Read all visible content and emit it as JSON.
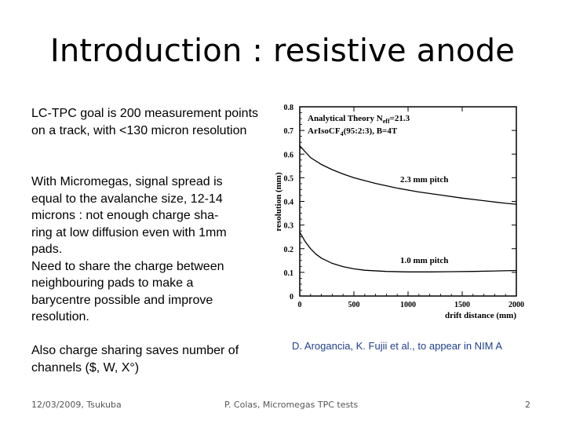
{
  "slide": {
    "title": "Introduction : resistive anode",
    "paragraph1": "LC-TPC goal is 200 measurement points on a track, with <130 micron resolution",
    "paragraph2_lines": [
      "With Micromegas, signal spread is",
      "equal to the avalanche size, 12-14",
      "microns : not enough charge sha-",
      "ring at low diffusion even with 1mm",
      "pads.",
      "Need to share the charge between",
      "neighbouring pads to make a",
      "barycentre possible and improve",
      "resolution."
    ],
    "paragraph3": "Also charge sharing saves number of channels ($, W, X°)",
    "caption": "D. Arogancia, K. Fujii et al., to appear in NIM A"
  },
  "footer": {
    "date": "12/03/2009, Tsukuba",
    "center": "P. Colas, Micromegas TPC tests",
    "page": "2"
  },
  "chart_data": {
    "type": "line",
    "xlabel": "drift distance (mm)",
    "ylabel": "resolution (mm)",
    "xlim": [
      0,
      2000
    ],
    "ylim": [
      0,
      0.8
    ],
    "x_ticks": [
      "0",
      "500",
      "1000",
      "1500",
      "2000"
    ],
    "y_ticks": [
      "0",
      "0.1",
      "0.2",
      "0.3",
      "0.4",
      "0.5",
      "0.6",
      "0.7",
      "0.8"
    ],
    "legend_line1": "Analytical Theory N",
    "legend_sub": "eff",
    "legend_value": "=21.3",
    "legend_line2": "ArIsoCF",
    "legend_sub2": "4",
    "legend_line2_rest": "(95:2:3), B=4T",
    "series": [
      {
        "name": "2.3 mm pitch",
        "x": [
          0,
          100,
          200,
          300,
          400,
          500,
          700,
          900,
          1100,
          1300,
          1500,
          1700,
          1900,
          2000
        ],
        "values": [
          0.635,
          0.585,
          0.556,
          0.534,
          0.516,
          0.5,
          0.476,
          0.456,
          0.44,
          0.427,
          0.414,
          0.403,
          0.392,
          0.388
        ]
      },
      {
        "name": "1.0 mm pitch",
        "x": [
          0,
          50,
          100,
          150,
          200,
          300,
          400,
          500,
          600,
          800,
          1000,
          1200,
          1400,
          1600,
          1800,
          2000
        ],
        "values": [
          0.27,
          0.23,
          0.2,
          0.177,
          0.16,
          0.138,
          0.124,
          0.115,
          0.109,
          0.104,
          0.102,
          0.102,
          0.103,
          0.104,
          0.106,
          0.108
        ]
      }
    ]
  }
}
